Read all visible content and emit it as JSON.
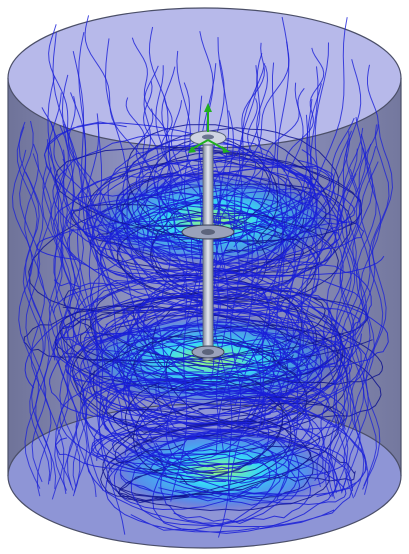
{
  "colors": {
    "background": "#ffffff",
    "tank_body": "#8a8ec0",
    "tank_top": "#b7b9ea",
    "tank_bottom": "#8e95d6",
    "tank_outline": "#4b4f68",
    "streamline": "#1a1fd8",
    "streamline_dark": "#0f138f",
    "flow_glow": "#28e4ff",
    "flow_core": "#a4ff6a",
    "shaft": "#bfc5d6",
    "impeller": "#9aa2bb",
    "axis_green": "#20b020"
  },
  "icons": {
    "axis_triad": "coordinate-axis-icon"
  }
}
